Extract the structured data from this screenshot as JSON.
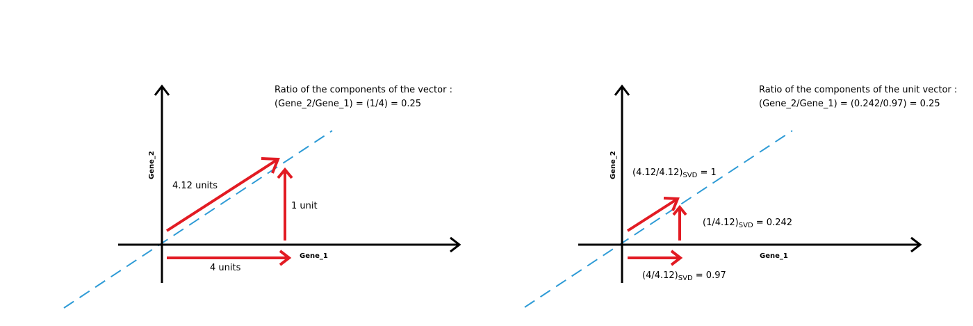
{
  "left_panel": {
    "title_line1": "Ratio of the components of the vector :",
    "title_line2": "(Gene_2/Gene_1) = (1/4) = 0.25",
    "axis_x_label": "Gene_1",
    "axis_y_label": "Gene_2",
    "vector_label": "4.12 units",
    "vertical_label": "1 unit",
    "horizontal_label": "4 units"
  },
  "right_panel": {
    "title_line1": "Ratio of the components of the unit vector :",
    "title_line2": "(Gene_2/Gene_1) = (0.242/0.97) = 0.25",
    "axis_x_label": "Gene_1",
    "axis_y_label": "Gene_2",
    "vector_label": {
      "main": "(4.12/4.12)",
      "sub": "SVD",
      "rest": " = 1"
    },
    "vertical_label": {
      "main": "(1/4.12)",
      "sub": "SVD",
      "rest": " = 0.242"
    },
    "horizontal_label": {
      "main": "(4/4.12)",
      "sub": "SVD",
      "rest": " = 0.97"
    }
  },
  "colors": {
    "axis": "#000000",
    "vector": "#e21b23",
    "dashed_line": "#2e9bd6"
  }
}
